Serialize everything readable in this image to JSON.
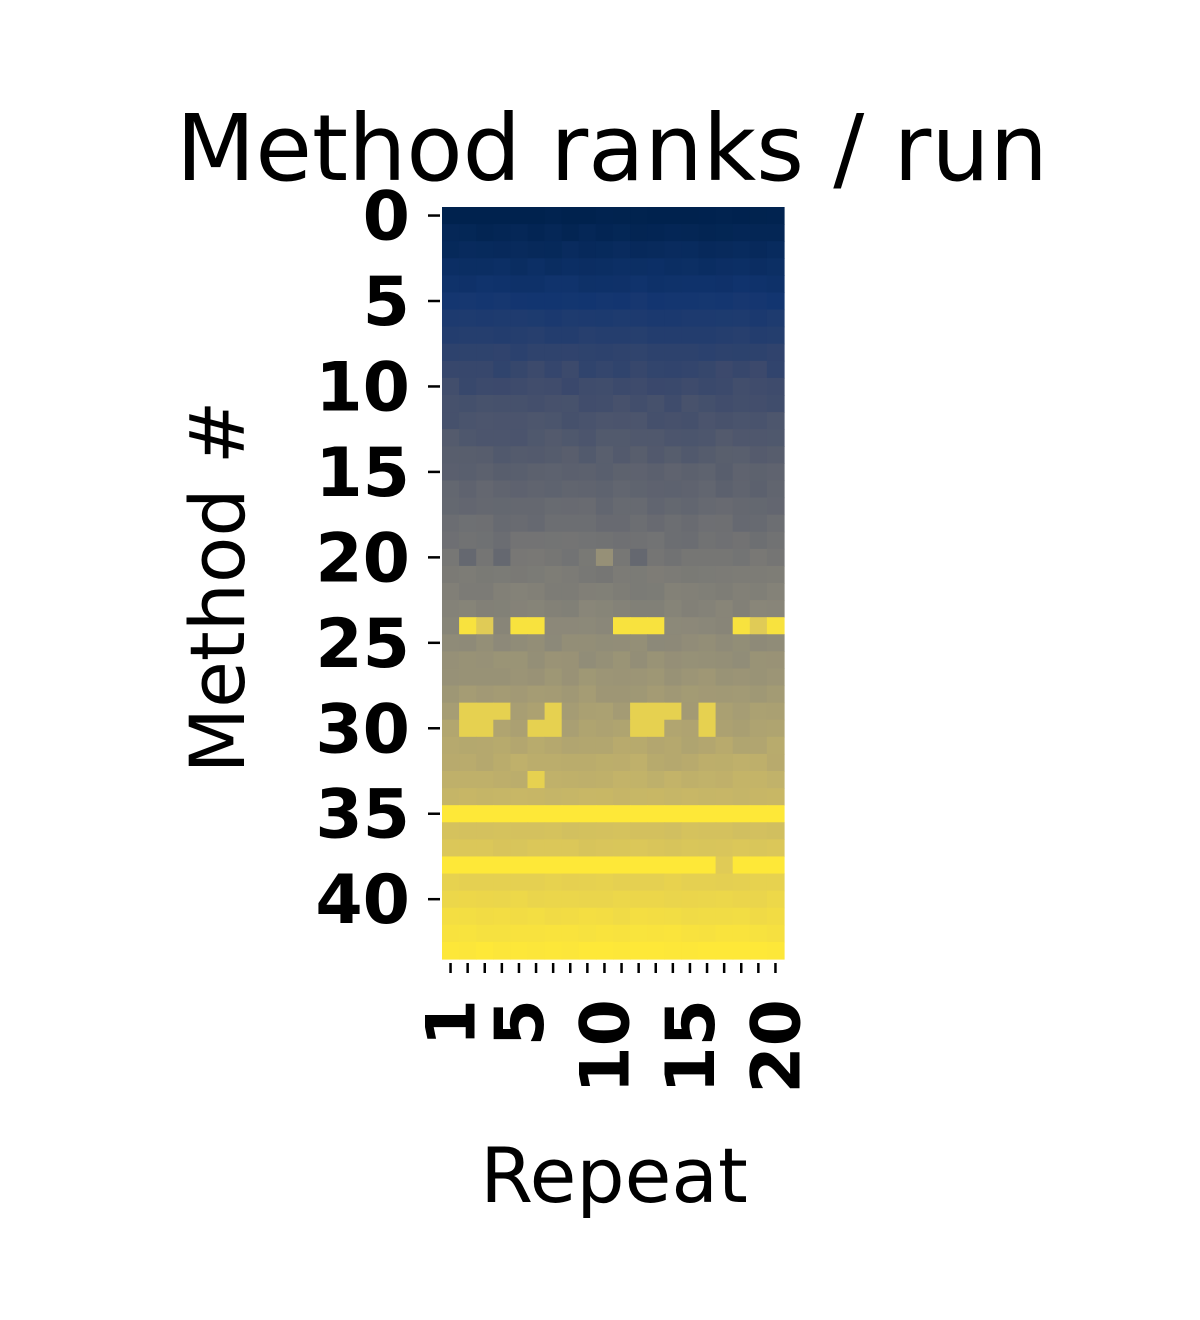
{
  "chart_data": {
    "type": "heatmap",
    "title": "Method ranks / run",
    "xlabel": "Repeat",
    "ylabel": "Method #",
    "colormap": "cividis",
    "colormap_stops": [
      "#00224e",
      "#123570",
      "#3b496c",
      "#575d6d",
      "#707173",
      "#8a8779",
      "#a59c74",
      "#c3b369",
      "#e1cc55",
      "#fee838"
    ],
    "value_range": [
      0,
      43
    ],
    "rows": 44,
    "columns": 20,
    "y_ticks": [
      {
        "value": 0,
        "label": "0"
      },
      {
        "value": 5,
        "label": "5"
      },
      {
        "value": 10,
        "label": "10"
      },
      {
        "value": 15,
        "label": "15"
      },
      {
        "value": 20,
        "label": "20"
      },
      {
        "value": 25,
        "label": "25"
      },
      {
        "value": 30,
        "label": "30"
      },
      {
        "value": 35,
        "label": "35"
      },
      {
        "value": 40,
        "label": "40"
      }
    ],
    "x_ticks": [
      {
        "value": 1,
        "label": "1"
      },
      {
        "value": 5,
        "label": "5"
      },
      {
        "value": 10,
        "label": "10"
      },
      {
        "value": 15,
        "label": "15"
      },
      {
        "value": 20,
        "label": "20"
      }
    ],
    "row_ranks": [
      0,
      1,
      2,
      3,
      4,
      5,
      6,
      7,
      8,
      9,
      10,
      11,
      12,
      13,
      14,
      15,
      16,
      17,
      18,
      19,
      20,
      21,
      22,
      23,
      24,
      25,
      26,
      27,
      28,
      29,
      30,
      31,
      32,
      33,
      34,
      35,
      36,
      37,
      38,
      39,
      40,
      41,
      42,
      43
    ],
    "outliers": [
      {
        "row": 24,
        "repeats": [
          2,
          5,
          6,
          11,
          12,
          13,
          18,
          20
        ],
        "rank": 42
      },
      {
        "row": 24,
        "repeats": [
          3,
          19
        ],
        "rank": 38
      },
      {
        "row": 29,
        "repeats": [
          2,
          3,
          4,
          7,
          12,
          13,
          14,
          16
        ],
        "rank": 39
      },
      {
        "row": 30,
        "repeats": [
          2,
          3,
          6,
          7,
          12,
          13,
          16
        ],
        "rank": 39
      },
      {
        "row": 33,
        "repeats": [
          6
        ],
        "rank": 39
      },
      {
        "row": 35,
        "repeats": [
          1,
          2,
          3,
          4,
          5,
          6,
          7,
          8,
          9,
          10,
          11,
          12,
          13,
          14,
          15,
          16,
          17,
          18,
          19,
          20
        ],
        "rank": 43
      },
      {
        "row": 38,
        "repeats": [
          1,
          2,
          3,
          4,
          5,
          6,
          7,
          8,
          9,
          10,
          11,
          12,
          13,
          14,
          15,
          16,
          18,
          19,
          20
        ],
        "rank": 43
      },
      {
        "row": 20,
        "repeats": [
          10
        ],
        "rank": 26
      },
      {
        "row": 20,
        "repeats": [
          2,
          4,
          12
        ],
        "rank": 17
      }
    ]
  }
}
